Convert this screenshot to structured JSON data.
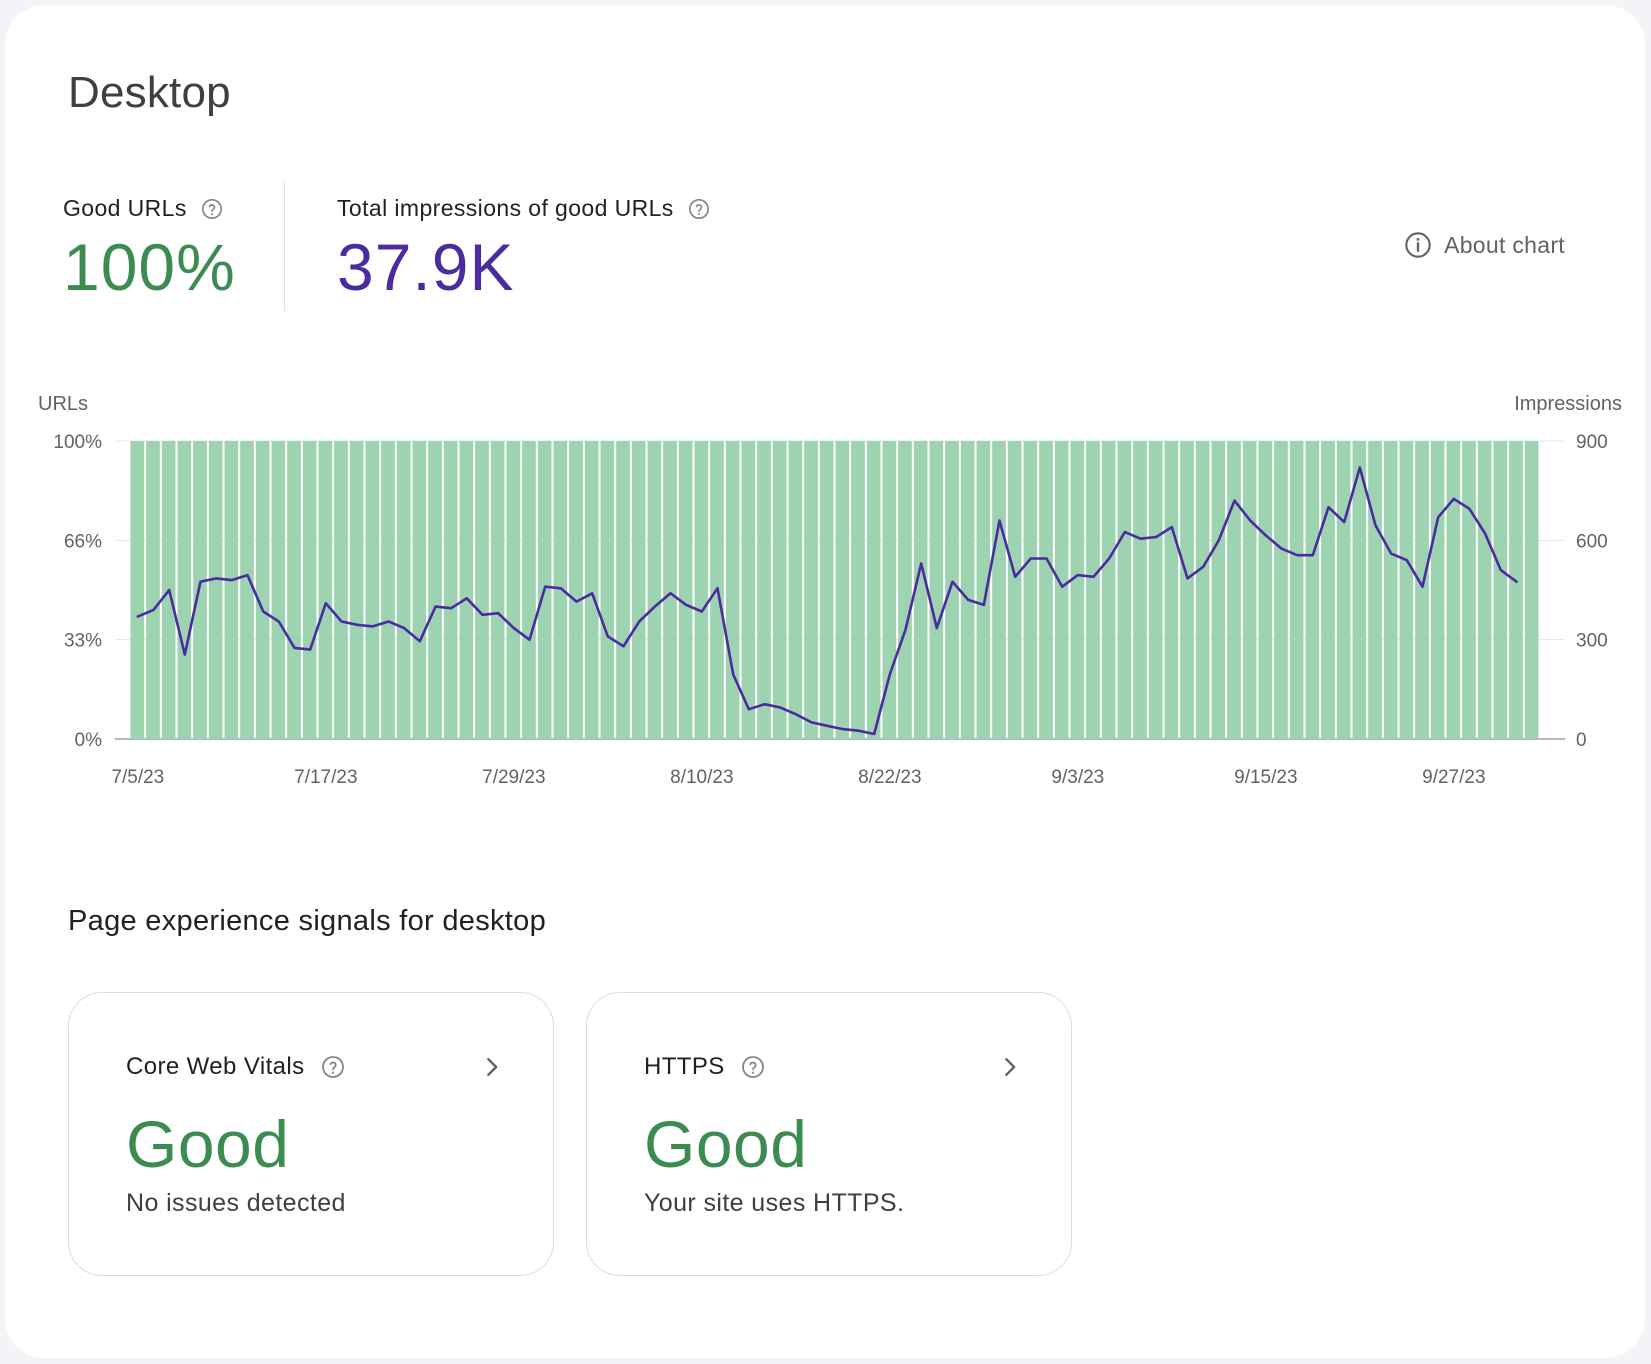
{
  "page": {
    "title": "Desktop"
  },
  "metrics": {
    "good_urls": {
      "label": "Good URLs",
      "value": "100%"
    },
    "impressions": {
      "label": "Total impressions of good URLs",
      "value": "37.9K"
    }
  },
  "about_chart": {
    "label": "About chart"
  },
  "colors": {
    "good": "#3c8c52",
    "impressions": "#4b2ba0",
    "bar": "#9dd3b1"
  },
  "chart_data": {
    "type": "bar",
    "left_axis": {
      "label": "URLs",
      "ticks": [
        "0%",
        "33%",
        "66%",
        "100%"
      ],
      "range": [
        0,
        100
      ]
    },
    "right_axis": {
      "label": "Impressions",
      "ticks": [
        "0",
        "300",
        "600",
        "900"
      ],
      "range": [
        0,
        900
      ]
    },
    "x_ticks": [
      "7/5/23",
      "7/17/23",
      "7/29/23",
      "8/10/23",
      "8/22/23",
      "9/3/23",
      "9/15/23",
      "9/27/23"
    ],
    "start_date": "2023-07-05",
    "grid": true,
    "series": [
      {
        "type": "bar",
        "axis": "left",
        "values": [
          100,
          100,
          100,
          100,
          100,
          100,
          100,
          100,
          100,
          100,
          100,
          100,
          100,
          100,
          100,
          100,
          100,
          100,
          100,
          100,
          100,
          100,
          100,
          100,
          100,
          100,
          100,
          100,
          100,
          100,
          100,
          100,
          100,
          100,
          100,
          100,
          100,
          100,
          100,
          100,
          100,
          100,
          100,
          100,
          100,
          100,
          100,
          100,
          100,
          100,
          100,
          100,
          100,
          100,
          100,
          100,
          100,
          100,
          100,
          100,
          100,
          100,
          100,
          100,
          100,
          100,
          100,
          100,
          100,
          100,
          100,
          100,
          100,
          100,
          100,
          100,
          100,
          100,
          100,
          100,
          100,
          100,
          100,
          100,
          100,
          100,
          100,
          100,
          100,
          100
        ]
      },
      {
        "type": "line",
        "axis": "right",
        "values": [
          370,
          390,
          450,
          255,
          475,
          485,
          480,
          495,
          385,
          355,
          275,
          270,
          410,
          355,
          345,
          340,
          355,
          335,
          295,
          400,
          395,
          425,
          375,
          380,
          335,
          300,
          460,
          455,
          415,
          440,
          310,
          280,
          355,
          400,
          440,
          405,
          385,
          455,
          195,
          90,
          105,
          95,
          75,
          50,
          40,
          30,
          25,
          15,
          195,
          330,
          530,
          335,
          475,
          420,
          405,
          660,
          490,
          545,
          545,
          460,
          495,
          490,
          545,
          625,
          605,
          610,
          640,
          485,
          520,
          600,
          720,
          660,
          615,
          575,
          555,
          555,
          700,
          655,
          820,
          645,
          560,
          540,
          460,
          670,
          725,
          695,
          620,
          510,
          475
        ]
      }
    ]
  },
  "signals": {
    "title": "Page experience signals for desktop",
    "cards": [
      {
        "label": "Core Web Vitals",
        "status": "Good",
        "description": "No issues detected"
      },
      {
        "label": "HTTPS",
        "status": "Good",
        "description": "Your site uses HTTPS."
      }
    ]
  }
}
